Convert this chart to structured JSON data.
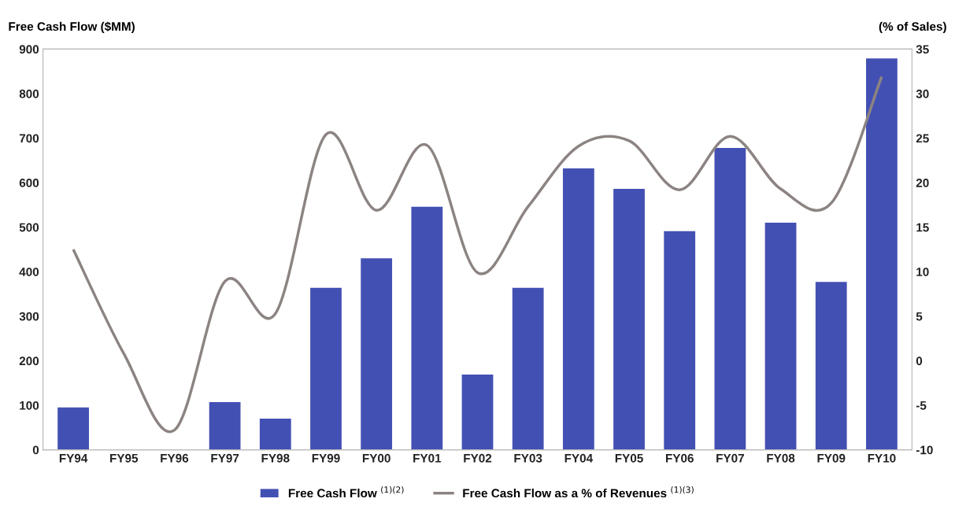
{
  "chart_data": {
    "type": "bar",
    "ylabel": "Free Cash Flow ($MM)",
    "y2label": "(% of Sales)",
    "categories": [
      "FY94",
      "FY95",
      "FY96",
      "FY97",
      "FY98",
      "FY99",
      "FY00",
      "FY01",
      "FY02",
      "FY03",
      "FY04",
      "FY05",
      "FY06",
      "FY07",
      "FY08",
      "FY09",
      "FY10"
    ],
    "series": [
      {
        "name": "Free Cash Flow $^{(1)(2)}$",
        "color": "#4350b3",
        "values": [
          95,
          null,
          null,
          107,
          70,
          364,
          430,
          546,
          169,
          364,
          632,
          586,
          491,
          678,
          510,
          377,
          879
        ]
      },
      {
        "name": "Free Cash Flow as a % of Revenues $^{(1)(3)}$",
        "type": "line",
        "axis": "y2",
        "color": "#8c8482",
        "values": [
          12.5,
          0.8,
          -7.8,
          8.9,
          5.3,
          25.4,
          16.9,
          24.2,
          9.9,
          17.3,
          24.1,
          24.7,
          19.2,
          25.2,
          19.3,
          17.7,
          31.9
        ]
      }
    ],
    "ylim": [
      0,
      900
    ],
    "yticks": [
      0,
      100,
      200,
      300,
      400,
      500,
      600,
      700,
      800,
      900
    ],
    "y2lim": [
      -10,
      35
    ],
    "y2ticks": [
      -10,
      -5,
      0,
      5,
      10,
      15,
      20,
      25,
      30,
      35
    ],
    "grid": false,
    "legend": "bottom",
    "line_style": "solid",
    "marker": "none"
  }
}
